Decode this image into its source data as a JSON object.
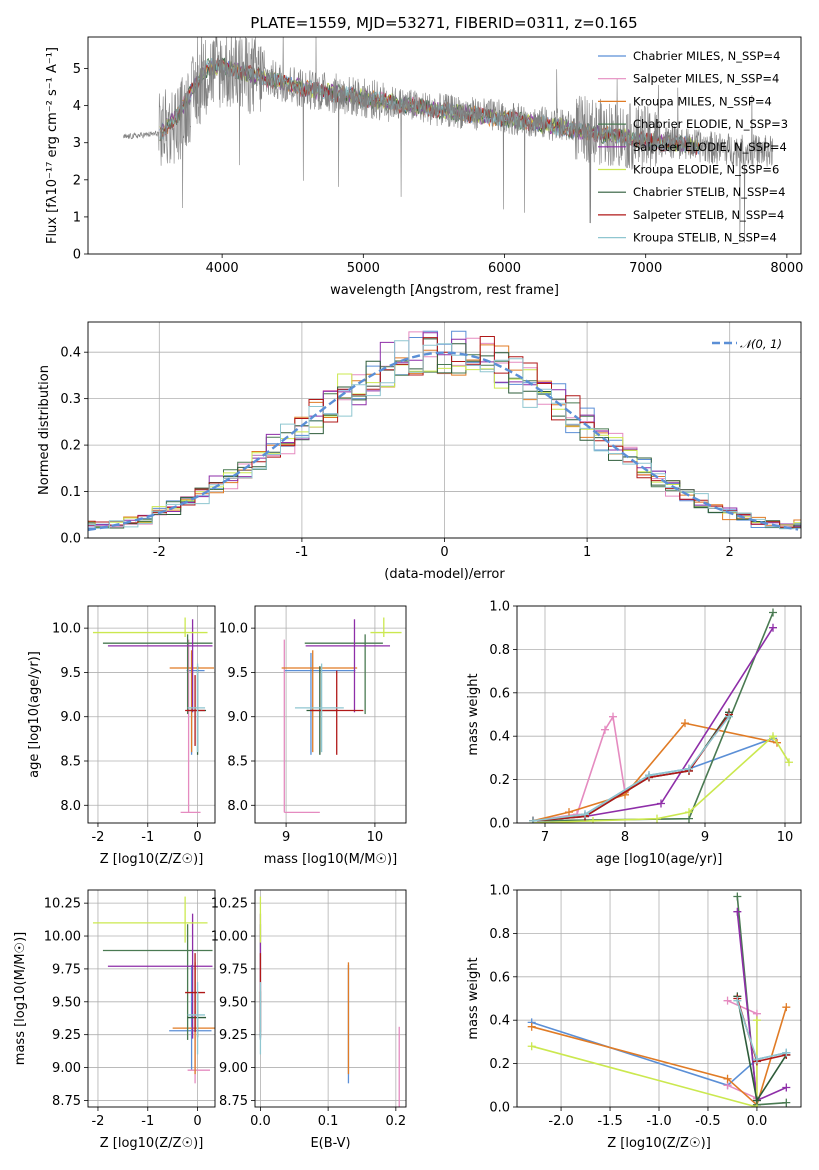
{
  "figure": {
    "title": "PLATE=1559, MJD=53271, FIBERID=0311, z=0.165"
  },
  "colors": {
    "Chabrier MILES": "#5b8fd6",
    "Salpeter MILES": "#e58bc0",
    "Kroupa MILES": "#e07b25",
    "Chabrier ELODIE": "#4a7a52",
    "Salpeter ELODIE": "#8e2ea8",
    "Kroupa ELODIE": "#cbe84f",
    "Chabrier STELIB": "#2e5c3a",
    "Salpeter STELIB": "#b01818",
    "Kroupa STELIB": "#8fc6d0",
    "spectrum": "#808080",
    "normal": "#5b8fd6"
  },
  "chart_data": [
    {
      "id": "spectrum",
      "type": "line",
      "xlabel": "wavelength [Angstrom, rest frame]",
      "ylabel": "Flux [f_λ 10^-17 erg cm^-2 s^-1 A^-1]",
      "xlim": [
        3050,
        8100
      ],
      "ylim": [
        0,
        5.85
      ],
      "xticks": [
        4000,
        5000,
        6000,
        7000,
        8000
      ],
      "yticks": [
        0,
        1,
        2,
        3,
        4,
        5
      ],
      "grid": false,
      "legend_position": "upper right",
      "legend": [
        {
          "label": "Chabrier MILES, N_SSP=4",
          "model": "Chabrier MILES"
        },
        {
          "label": "Salpeter MILES, N_SSP=4",
          "model": "Salpeter MILES"
        },
        {
          "label": "Kroupa MILES, N_SSP=4",
          "model": "Kroupa MILES"
        },
        {
          "label": "Chabrier ELODIE, N_SSP=3",
          "model": "Chabrier ELODIE"
        },
        {
          "label": "Salpeter ELODIE, N_SSP=4",
          "model": "Salpeter ELODIE"
        },
        {
          "label": "Kroupa ELODIE, N_SSP=6",
          "model": "Kroupa ELODIE"
        },
        {
          "label": "Chabrier STELIB, N_SSP=4",
          "model": "Chabrier STELIB"
        },
        {
          "label": "Salpeter STELIB, N_SSP=4",
          "model": "Salpeter STELIB"
        },
        {
          "label": "Kroupa STELIB, N_SSP=4",
          "model": "Kroupa STELIB"
        }
      ],
      "spectrum_trend": {
        "x": [
          3300,
          3550,
          3700,
          3800,
          3900,
          4000,
          4300,
          4600,
          5000,
          5500,
          6000,
          6500,
          7000,
          7500,
          7900
        ],
        "y": [
          3.15,
          3.25,
          3.6,
          4.3,
          4.9,
          5.0,
          4.75,
          4.45,
          4.2,
          3.9,
          3.7,
          3.4,
          3.1,
          2.85,
          2.75
        ]
      },
      "model_trend": {
        "x": [
          3550,
          3700,
          3800,
          3900,
          4000,
          4300,
          4600,
          5000,
          5500,
          6000,
          6500,
          7000,
          7400
        ],
        "y": [
          3.2,
          3.8,
          4.5,
          5.05,
          5.05,
          4.75,
          4.45,
          4.2,
          3.9,
          3.65,
          3.35,
          3.05,
          2.9
        ]
      }
    },
    {
      "id": "residuals",
      "type": "line",
      "xlabel": "(data-model)/error",
      "ylabel": "Normed distribution",
      "xlim": [
        -2.5,
        2.5
      ],
      "ylim": [
        0,
        0.465
      ],
      "xticks": [
        -2,
        -1,
        0,
        1,
        2
      ],
      "yticks": [
        0.0,
        0.1,
        0.2,
        0.3,
        0.4
      ],
      "grid": true,
      "legend_position": "upper right",
      "legend": [
        {
          "label": "𝒩(0, 1)"
        }
      ],
      "bin_width": 0.1,
      "histogram_shape": "normal, sigma≈1"
    },
    {
      "id": "age_vs_Z",
      "type": "scatter",
      "xlabel": "Z [log10(Z/Z☉)]",
      "ylabel": "age [log10(age/yr)]",
      "xlim": [
        -2.2,
        0.35
      ],
      "ylim": [
        7.8,
        10.25
      ],
      "xticks": [
        -2,
        -1,
        0
      ],
      "yticks": [
        8.0,
        8.5,
        9.0,
        9.5,
        10.0
      ],
      "grid": true,
      "points": [
        {
          "model": "Chabrier MILES",
          "x": -0.12,
          "xerr": [
            0.1,
            0.26
          ],
          "y": 9.52,
          "yerr": [
            0.95,
            0.2
          ]
        },
        {
          "model": "Salpeter MILES",
          "x": -0.18,
          "xerr": [
            0.16,
            0.24
          ],
          "y": 7.92,
          "yerr": [
            0.0,
            1.95
          ]
        },
        {
          "model": "Kroupa MILES",
          "x": -0.12,
          "xerr": [
            0.44,
            0.45
          ],
          "y": 9.55,
          "yerr": [
            0.95,
            0.2
          ]
        },
        {
          "model": "Chabrier ELODIE",
          "x": -0.2,
          "xerr": [
            1.7,
            0.5
          ],
          "y": 9.83,
          "yerr": [
            0.8,
            0.1
          ]
        },
        {
          "model": "Salpeter ELODIE",
          "x": -0.1,
          "xerr": [
            1.7,
            0.4
          ],
          "y": 9.8,
          "yerr": [
            0.75,
            0.3
          ]
        },
        {
          "model": "Kroupa ELODIE",
          "x": -0.25,
          "xerr": [
            1.85,
            0.45
          ],
          "y": 9.95,
          "yerr": [
            0.05,
            0.17
          ]
        },
        {
          "model": "Chabrier STELIB",
          "x": 0.0,
          "xerr": [
            0.2,
            0.17
          ],
          "y": 9.07,
          "yerr": [
            0.5,
            0.5
          ]
        },
        {
          "model": "Salpeter STELIB",
          "x": -0.05,
          "xerr": [
            0.2,
            0.2
          ],
          "y": 9.07,
          "yerr": [
            0.4,
            0.4
          ]
        },
        {
          "model": "Kroupa STELIB",
          "x": 0.0,
          "xerr": [
            0.2,
            0.15
          ],
          "y": 9.1,
          "yerr": [
            0.5,
            0.5
          ]
        }
      ]
    },
    {
      "id": "age_vs_mass",
      "type": "scatter",
      "xlabel": "mass [log10(M/M☉)]",
      "ylabel": "",
      "xlim": [
        8.65,
        10.35
      ],
      "ylim": [
        7.8,
        10.25
      ],
      "xticks": [
        9,
        10
      ],
      "yticks": [
        8.0,
        8.5,
        9.0,
        9.5,
        10.0
      ],
      "grid": true,
      "points": [
        {
          "model": "Chabrier MILES",
          "x": 9.28,
          "xerr": [
            0.3,
            0.5
          ],
          "y": 9.52,
          "yerr": [
            0.95,
            0.2
          ]
        },
        {
          "model": "Salpeter MILES",
          "x": 8.98,
          "xerr": [
            0.0,
            0.4
          ],
          "y": 7.92,
          "yerr": [
            0.0,
            1.95
          ]
        },
        {
          "model": "Kroupa MILES",
          "x": 9.3,
          "xerr": [
            0.35,
            0.5
          ],
          "y": 9.55,
          "yerr": [
            0.95,
            0.2
          ]
        },
        {
          "model": "Chabrier ELODIE",
          "x": 9.89,
          "xerr": [
            0.68,
            0.2
          ],
          "y": 9.83,
          "yerr": [
            0.8,
            0.1
          ]
        },
        {
          "model": "Salpeter ELODIE",
          "x": 9.77,
          "xerr": [
            0.55,
            0.4
          ],
          "y": 9.8,
          "yerr": [
            0.75,
            0.3
          ]
        },
        {
          "model": "Kroupa ELODIE",
          "x": 10.1,
          "xerr": [
            0.15,
            0.2
          ],
          "y": 9.95,
          "yerr": [
            0.05,
            0.17
          ]
        },
        {
          "model": "Chabrier STELIB",
          "x": 9.38,
          "xerr": [
            0.15,
            0.2
          ],
          "y": 9.07,
          "yerr": [
            0.5,
            0.5
          ]
        },
        {
          "model": "Salpeter STELIB",
          "x": 9.57,
          "xerr": [
            0.3,
            0.3
          ],
          "y": 9.07,
          "yerr": [
            0.5,
            0.45
          ]
        },
        {
          "model": "Kroupa STELIB",
          "x": 9.4,
          "xerr": [
            0.3,
            0.25
          ],
          "y": 9.1,
          "yerr": [
            0.5,
            0.5
          ]
        }
      ]
    },
    {
      "id": "massweight_vs_age",
      "type": "line",
      "xlabel": "age [log10(age/yr)]",
      "ylabel": "mass weight",
      "xlim": [
        6.65,
        10.2
      ],
      "ylim": [
        0,
        1.0
      ],
      "xticks": [
        7,
        8,
        9,
        10
      ],
      "yticks": [
        0.0,
        0.2,
        0.4,
        0.6,
        0.8,
        1.0
      ],
      "grid": true,
      "series": [
        {
          "model": "Chabrier MILES",
          "x": [
            6.85,
            7.5,
            8.3,
            8.8,
            9.85
          ],
          "y": [
            0.01,
            0.04,
            0.22,
            0.25,
            0.39
          ]
        },
        {
          "model": "Salpeter MILES",
          "x": [
            6.85,
            7.4,
            7.75,
            7.85,
            8.0
          ],
          "y": [
            0.01,
            0.04,
            0.43,
            0.49,
            0.14
          ]
        },
        {
          "model": "Kroupa MILES",
          "x": [
            6.85,
            7.3,
            8.0,
            8.75,
            9.9
          ],
          "y": [
            0.01,
            0.05,
            0.13,
            0.46,
            0.37
          ]
        },
        {
          "model": "Chabrier ELODIE",
          "x": [
            6.85,
            8.8,
            9.85
          ],
          "y": [
            0.01,
            0.02,
            0.97
          ]
        },
        {
          "model": "Salpeter ELODIE",
          "x": [
            6.85,
            7.5,
            8.45,
            9.85
          ],
          "y": [
            0.01,
            0.03,
            0.09,
            0.9
          ]
        },
        {
          "model": "Kroupa ELODIE",
          "x": [
            6.85,
            7.6,
            8.4,
            8.8,
            9.85,
            10.05
          ],
          "y": [
            0.0,
            0.01,
            0.02,
            0.05,
            0.4,
            0.28
          ]
        },
        {
          "model": "Chabrier STELIB",
          "x": [
            6.85,
            7.5,
            8.3,
            8.8,
            9.3
          ],
          "y": [
            0.01,
            0.03,
            0.21,
            0.24,
            0.51
          ]
        },
        {
          "model": "Salpeter STELIB",
          "x": [
            6.85,
            7.5,
            8.3,
            8.8,
            9.3
          ],
          "y": [
            0.01,
            0.03,
            0.21,
            0.24,
            0.5
          ]
        },
        {
          "model": "Kroupa STELIB",
          "x": [
            6.85,
            7.5,
            8.3,
            8.8,
            9.3
          ],
          "y": [
            0.01,
            0.04,
            0.22,
            0.25,
            0.49
          ]
        }
      ]
    },
    {
      "id": "mass_vs_Z",
      "type": "scatter",
      "xlabel": "Z [log10(Z/Z☉)]",
      "ylabel": "mass [log10(M/M☉)]",
      "xlim": [
        -2.2,
        0.35
      ],
      "ylim": [
        8.7,
        10.35
      ],
      "xticks": [
        -2,
        -1,
        0
      ],
      "yticks": [
        8.75,
        9.0,
        9.25,
        9.5,
        9.75,
        10.0,
        10.25
      ],
      "grid": true,
      "points": [
        {
          "model": "Chabrier MILES",
          "x": -0.12,
          "xerr": [
            0.45,
            0.4
          ],
          "y": 9.28,
          "yerr": [
            0.3,
            0.5
          ]
        },
        {
          "model": "Salpeter MILES",
          "x": -0.05,
          "xerr": [
            0.15,
            0.3
          ],
          "y": 8.98,
          "yerr": [
            0.1,
            0.45
          ]
        },
        {
          "model": "Kroupa MILES",
          "x": -0.05,
          "xerr": [
            0.45,
            0.4
          ],
          "y": 9.3,
          "yerr": [
            0.35,
            0.5
          ]
        },
        {
          "model": "Chabrier ELODIE",
          "x": -0.2,
          "xerr": [
            1.7,
            0.5
          ],
          "y": 9.89,
          "yerr": [
            0.68,
            0.2
          ]
        },
        {
          "model": "Salpeter ELODIE",
          "x": -0.1,
          "xerr": [
            1.7,
            0.4
          ],
          "y": 9.77,
          "yerr": [
            0.55,
            0.4
          ]
        },
        {
          "model": "Kroupa ELODIE",
          "x": -0.25,
          "xerr": [
            1.85,
            0.45
          ],
          "y": 10.1,
          "yerr": [
            0.15,
            0.2
          ]
        },
        {
          "model": "Chabrier STELIB",
          "x": 0.0,
          "xerr": [
            0.2,
            0.17
          ],
          "y": 9.38,
          "yerr": [
            0.15,
            0.2
          ]
        },
        {
          "model": "Salpeter STELIB",
          "x": -0.05,
          "xerr": [
            0.2,
            0.2
          ],
          "y": 9.57,
          "yerr": [
            0.3,
            0.3
          ]
        },
        {
          "model": "Kroupa STELIB",
          "x": 0.0,
          "xerr": [
            0.2,
            0.15
          ],
          "y": 9.4,
          "yerr": [
            0.3,
            0.25
          ]
        }
      ]
    },
    {
      "id": "mass_vs_ebv",
      "type": "scatter",
      "xlabel": "E(B-V)",
      "ylabel": "",
      "xlim": [
        -0.008,
        0.215
      ],
      "ylim": [
        8.7,
        10.35
      ],
      "xticks": [
        0.0,
        0.1,
        0.2
      ],
      "yticks": [
        8.75,
        9.0,
        9.25,
        9.5,
        9.75,
        10.0,
        10.25
      ],
      "grid": true,
      "points": [
        {
          "model": "Chabrier MILES",
          "x": 0.13,
          "y": 9.28,
          "yerr": [
            0.4,
            0.5
          ]
        },
        {
          "model": "Salpeter MILES",
          "x": 0.205,
          "y": 8.98,
          "yerr": [
            0.3,
            0.33
          ]
        },
        {
          "model": "Kroupa MILES",
          "x": 0.13,
          "y": 9.3,
          "yerr": [
            0.35,
            0.5
          ]
        },
        {
          "model": "Chabrier ELODIE",
          "x": 0.0,
          "y": 9.89,
          "yerr": [
            0.68,
            0.2
          ]
        },
        {
          "model": "Salpeter ELODIE",
          "x": 0.0,
          "y": 9.77,
          "yerr": [
            0.55,
            0.4
          ]
        },
        {
          "model": "Kroupa ELODIE",
          "x": 0.0,
          "y": 10.1,
          "yerr": [
            0.15,
            0.2
          ]
        },
        {
          "model": "Chabrier STELIB",
          "x": 0.0,
          "y": 9.38,
          "yerr": [
            0.15,
            0.2
          ]
        },
        {
          "model": "Salpeter STELIB",
          "x": 0.0,
          "y": 9.57,
          "yerr": [
            0.3,
            0.3
          ]
        },
        {
          "model": "Kroupa STELIB",
          "x": 0.0,
          "y": 9.4,
          "yerr": [
            0.3,
            0.25
          ]
        }
      ]
    },
    {
      "id": "massweight_vs_Z",
      "type": "line",
      "xlabel": "Z [log10(Z/Z☉)]",
      "ylabel": "mass weight",
      "xlim": [
        -2.45,
        0.45
      ],
      "ylim": [
        0,
        1.0
      ],
      "xticks": [
        -2.0,
        -1.5,
        -1.0,
        -0.5,
        0.0
      ],
      "yticks": [
        0.0,
        0.2,
        0.4,
        0.6,
        0.8,
        1.0
      ],
      "grid": true,
      "series": [
        {
          "model": "Chabrier MILES",
          "x": [
            -2.3,
            -0.3,
            0.0,
            0.3
          ],
          "y": [
            0.39,
            0.1,
            0.22,
            0.25
          ]
        },
        {
          "model": "Salpeter MILES",
          "x": [
            -0.3,
            0.0,
            0.0,
            -0.3
          ],
          "y": [
            0.1,
            0.04,
            0.43,
            0.49
          ]
        },
        {
          "model": "Kroupa MILES",
          "x": [
            -2.3,
            -0.3,
            0.0,
            0.3
          ],
          "y": [
            0.37,
            0.13,
            0.01,
            0.46
          ]
        },
        {
          "model": "Chabrier ELODIE",
          "x": [
            -0.2,
            0.0,
            0.3
          ],
          "y": [
            0.97,
            0.01,
            0.02
          ]
        },
        {
          "model": "Salpeter ELODIE",
          "x": [
            -0.2,
            0.0,
            0.3
          ],
          "y": [
            0.9,
            0.03,
            0.09
          ]
        },
        {
          "model": "Kroupa ELODIE",
          "x": [
            -2.3,
            0.0,
            0.0
          ],
          "y": [
            0.28,
            0.0,
            0.4
          ]
        },
        {
          "model": "Chabrier STELIB",
          "x": [
            -0.2,
            0.0,
            0.3
          ],
          "y": [
            0.51,
            0.03,
            0.24
          ]
        },
        {
          "model": "Salpeter STELIB",
          "x": [
            -0.2,
            0.0,
            0.3
          ],
          "y": [
            0.5,
            0.21,
            0.24
          ]
        },
        {
          "model": "Kroupa STELIB",
          "x": [
            -0.2,
            0.0,
            0.3
          ],
          "y": [
            0.49,
            0.22,
            0.25
          ]
        }
      ]
    }
  ]
}
